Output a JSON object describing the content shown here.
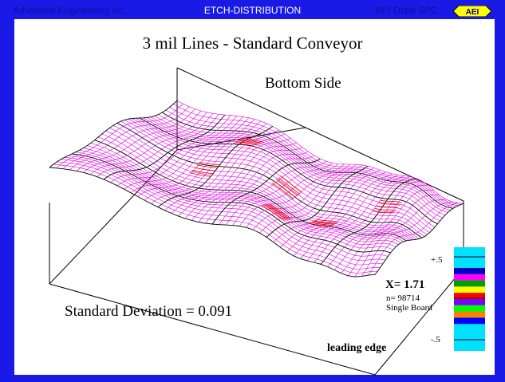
{
  "titlebar": {
    "left": "Advanced Engineering Inc.",
    "center": "ETCH-DISTRIBUTION",
    "right": "AEI Octal SPC",
    "logo": "AEI"
  },
  "plot": {
    "title": "3 mil Lines - Standard Conveyor",
    "subtitle": "Bottom Side",
    "std_dev": "Standard Deviation = 0.091",
    "leading_edge": "leading edge",
    "mean_label": "X= 1.71",
    "n_label": "n= 98714",
    "board_label": "Single Board",
    "scale_ticks": [
      "+.5",
      "-.5"
    ],
    "colors": {
      "background": "#1a1ae6",
      "panel": "#ffffff",
      "mesh": "#e000e0",
      "mesh_high": "#e00000",
      "grid": "#000000"
    }
  },
  "chart_data": {
    "type": "heatmap",
    "title": "3 mil Lines - Standard Conveyor",
    "subtitle": "Bottom Side",
    "mean": 1.71,
    "n": 98714,
    "std_dev": 0.091,
    "scale_range": [
      -0.5,
      0.5
    ],
    "colorbar": [
      "#00e0ff",
      "#0000c0",
      "#ff00ff",
      "#00a000",
      "#ffff00",
      "#ff0000",
      "#8000ff",
      "#00ff00",
      "#ff8000",
      "#0000ff",
      "#00ffff"
    ]
  }
}
